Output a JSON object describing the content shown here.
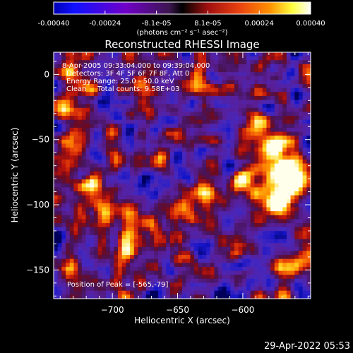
{
  "chart_data": {
    "type": "heatmap",
    "title": "Reconstructed RHESSI Image",
    "xlabel": "Heliocentric X (arcsec)",
    "ylabel": "Heliocentric Y (arcsec)",
    "xlim": [
      -745,
      -548
    ],
    "ylim": [
      -172,
      17
    ],
    "xticks": [
      -700,
      -650,
      -600
    ],
    "yticks": [
      -150,
      -100,
      -50,
      0
    ],
    "annotations": [
      "8-Apr-2005 09:33:04.000 to 09:39:04.000",
      "Detectors: 3F 4F 5F 6F 7F 8F, Att 0",
      "Energy Range: 25.0 - 50.0 keV",
      "Clean     Total counts: 9.58E+03"
    ],
    "peak_label": "Position of Peak = [-565,-79]",
    "peak": [
      -565,
      -79
    ],
    "colorbar": {
      "ticks": [
        "-0.00040",
        "-0.00024",
        "-8.1e-05",
        "8.1e-05",
        "0.00024",
        "0.00040"
      ],
      "range": [
        -0.0004,
        0.0004
      ],
      "units_label": "(photons cm⁻² s⁻¹ asec⁻²)",
      "colormap": [
        "#000000",
        "#0000ff",
        "#7a00c8",
        "#c81e1e",
        "#ff7800",
        "#ffff50",
        "#ffffff"
      ]
    },
    "grid": false
  },
  "footer": {
    "timestamp": "29-Apr-2022 05:53"
  }
}
